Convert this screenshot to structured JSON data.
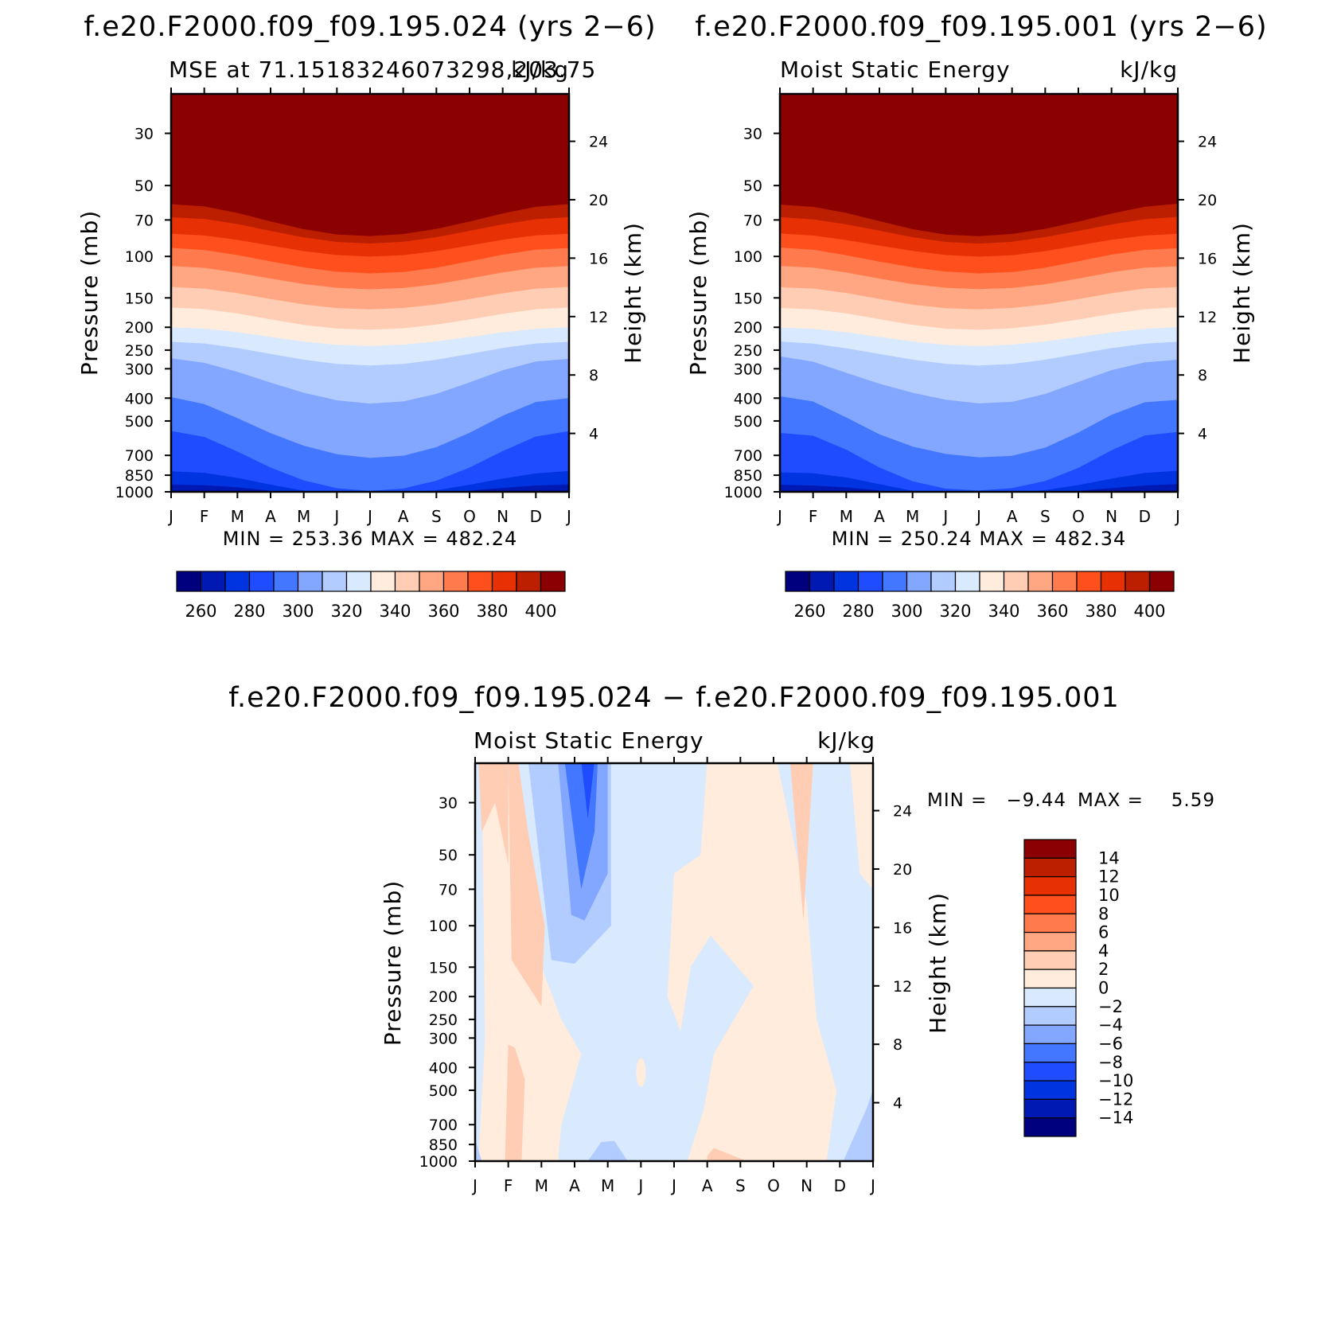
{
  "chart_data": [
    {
      "type": "heatmap",
      "title": "f.e20.F2000.f09_f09.195.024 (yrs 2−6)",
      "left_string": "MSE at 71.15183246073298,203.75",
      "right_string": "kJ/kg",
      "xlabel": "",
      "ylabel": "Pressure (mb)",
      "y2label": "Height (km)",
      "x_ticks": [
        "J",
        "F",
        "M",
        "A",
        "M",
        "J",
        "J",
        "A",
        "S",
        "O",
        "N",
        "D",
        "J"
      ],
      "y_ticks": [
        "30",
        "50",
        "70",
        "100",
        "150",
        "200",
        "250",
        "300",
        "400",
        "500",
        "700",
        "850",
        "1000"
      ],
      "y2_ticks": [
        "24",
        "20",
        "16",
        "12",
        "8",
        "4"
      ],
      "stats": "MIN = 253.36  MAX = 482.24",
      "levels": [
        260,
        270,
        280,
        290,
        300,
        310,
        320,
        330,
        340,
        350,
        360,
        370,
        380,
        390,
        400
      ],
      "colorbar_labels": [
        "260",
        "280",
        "300",
        "320",
        "340",
        "360",
        "380",
        "400"
      ],
      "colors": [
        "#00007f",
        "#0019b3",
        "#0034e0",
        "#1f4cff",
        "#4377ff",
        "#83a7ff",
        "#b3ccff",
        "#d9eaff",
        "#ffecdc",
        "#ffcdb4",
        "#ffa682",
        "#ff7a4c",
        "#ff4f1d",
        "#e73004",
        "#bb1f00",
        "#8b0000"
      ],
      "profile_value_shape": "seasonal: lower MSE aloft shifts down in NH summer (Jul)"
    },
    {
      "type": "heatmap",
      "title": "f.e20.F2000.f09_f09.195.001 (yrs 2−6)",
      "left_string": "Moist Static Energy",
      "right_string": "kJ/kg",
      "ylabel": "Pressure (mb)",
      "y2label": "Height (km)",
      "x_ticks": [
        "J",
        "F",
        "M",
        "A",
        "M",
        "J",
        "J",
        "A",
        "S",
        "O",
        "N",
        "D",
        "J"
      ],
      "y_ticks": [
        "30",
        "50",
        "70",
        "100",
        "150",
        "200",
        "250",
        "300",
        "400",
        "500",
        "700",
        "850",
        "1000"
      ],
      "y2_ticks": [
        "24",
        "20",
        "16",
        "12",
        "8",
        "4"
      ],
      "stats": "MIN = 250.24  MAX = 482.34",
      "colorbar_labels": [
        "260",
        "280",
        "300",
        "320",
        "340",
        "360",
        "380",
        "400"
      ]
    },
    {
      "type": "heatmap",
      "title": "f.e20.F2000.f09_f09.195.024 − f.e20.F2000.f09_f09.195.001",
      "left_string": "Moist Static Energy",
      "right_string": "kJ/kg",
      "ylabel": "Pressure (mb)",
      "y2label": "Height (km)",
      "x_ticks": [
        "J",
        "F",
        "M",
        "A",
        "M",
        "J",
        "J",
        "A",
        "S",
        "O",
        "N",
        "D",
        "J"
      ],
      "y_ticks": [
        "30",
        "50",
        "70",
        "100",
        "150",
        "200",
        "250",
        "300",
        "400",
        "500",
        "700",
        "850",
        "1000"
      ],
      "y2_ticks": [
        "24",
        "20",
        "16",
        "12",
        "8",
        "4"
      ],
      "stats_min_label": "MIN =",
      "stats_min": "−9.44",
      "stats_max_label": "MAX =",
      "stats_max": "5.59",
      "levels": [
        -14,
        -12,
        -10,
        -8,
        -6,
        -4,
        -2,
        0,
        2,
        4,
        6,
        8,
        10,
        12,
        14
      ],
      "colorbar_labels": [
        "14",
        "12",
        "10",
        "8",
        "6",
        "4",
        "2",
        "0",
        "−2",
        "−4",
        "−6",
        "−8",
        "−10",
        "−12",
        "−14"
      ],
      "colors": [
        "#8b0000",
        "#bb1f00",
        "#e73004",
        "#ff4f1d",
        "#ff7a4c",
        "#ffa682",
        "#ffcdb4",
        "#ffecdc",
        "#d9eaff",
        "#b3ccff",
        "#83a7ff",
        "#4377ff",
        "#1f4cff",
        "#0034e0",
        "#0019b3",
        "#00007f"
      ],
      "max_region": "near surface, Jan–Feb, ~+2 to +4",
      "min_region": "upper levels, April, ~−8 to −10"
    }
  ]
}
